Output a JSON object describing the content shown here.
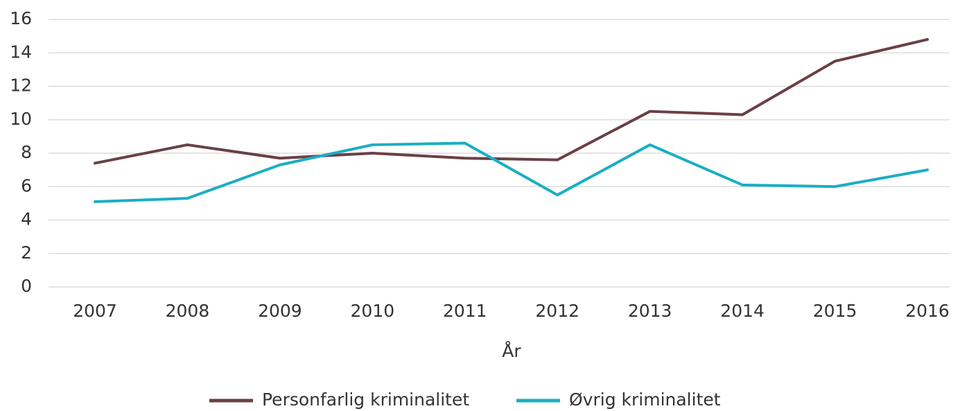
{
  "chart_data": {
    "type": "line",
    "x_label": "År",
    "categories": [
      "2007",
      "2008",
      "2009",
      "2010",
      "2011",
      "2012",
      "2013",
      "2014",
      "2015",
      "2016"
    ],
    "series": [
      {
        "name": "Personfarlig kriminalitet",
        "color": "#6b3f45",
        "values": [
          7.4,
          8.5,
          7.7,
          8.0,
          7.7,
          7.6,
          10.5,
          10.3,
          13.5,
          14.8
        ]
      },
      {
        "name": "Øvrig kriminalitet",
        "color": "#1aaec4",
        "values": [
          5.1,
          5.3,
          7.3,
          8.5,
          8.6,
          5.5,
          8.5,
          6.1,
          6.0,
          7.0
        ]
      }
    ],
    "ylim": [
      0,
      16
    ],
    "yticks": [
      0,
      2,
      4,
      6,
      8,
      10,
      12,
      14,
      16
    ],
    "grid": true
  }
}
